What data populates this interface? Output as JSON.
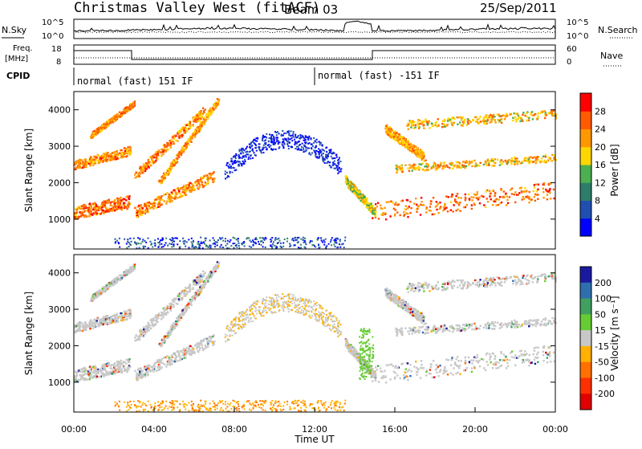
{
  "header": {
    "station": "Christmas Valley West (fitACF)",
    "beam": "Beam 03",
    "date": "25/Sep/2011"
  },
  "noise_panel": {
    "left_label": "N.Sky",
    "right_label": "N.Search",
    "tick_top": "10^5",
    "tick_bottom": "10^0",
    "right_tick_top": "10^5",
    "right_tick_bottom": "10^0"
  },
  "freq_panel": {
    "left_label_1": "Freq.",
    "left_label_2": "[MHz]",
    "left_tick_top": "18",
    "left_tick_bottom": "8",
    "right_label": "Nave",
    "right_tick_top": "60",
    "right_tick_bottom": "0",
    "cpid_label": "CPID",
    "cpid_1": "normal (fast) 151 IF",
    "cpid_2": "normal (fast) -151 IF"
  },
  "chart_data": [
    {
      "type": "heatmap",
      "panel": "power",
      "ylabel": "Slant Range [km]",
      "yticks": [
        "1000",
        "2000",
        "3000",
        "4000"
      ],
      "ylim": [
        180,
        4500
      ],
      "xlim": [
        "00:00",
        "24:00"
      ],
      "colorbar_label": "Power [dB]",
      "colorbar_ticks": [
        "4",
        "8",
        "12",
        "16",
        "20",
        "24",
        "28"
      ],
      "colorbar_colors": [
        "#0000ff",
        "#1f4fb0",
        "#2e7d6a",
        "#4caf50",
        "#ffd700",
        "#ff9800",
        "#ff5a00",
        "#ff0000"
      ]
    },
    {
      "type": "heatmap",
      "panel": "velocity",
      "ylabel": "Slant Range [km]",
      "yticks": [
        "1000",
        "2000",
        "3000",
        "4000"
      ],
      "ylim": [
        180,
        4500
      ],
      "xlim": [
        "00:00",
        "24:00"
      ],
      "xticks": [
        "00:00",
        "04:00",
        "08:00",
        "12:00",
        "16:00",
        "20:00",
        "00:00"
      ],
      "xlabel": "Time UT",
      "colorbar_label": "Velocity [m s⁻¹]",
      "colorbar_ticks": [
        "200",
        "100",
        "50",
        "15",
        "-15",
        "-50",
        "-100",
        "-200"
      ],
      "colorbar_colors": [
        "#1a1aa0",
        "#2f6fb0",
        "#3fa060",
        "#66cc33",
        "#c8c8c8",
        "#ffb000",
        "#ff7000",
        "#ff3000",
        "#e00000"
      ]
    }
  ]
}
